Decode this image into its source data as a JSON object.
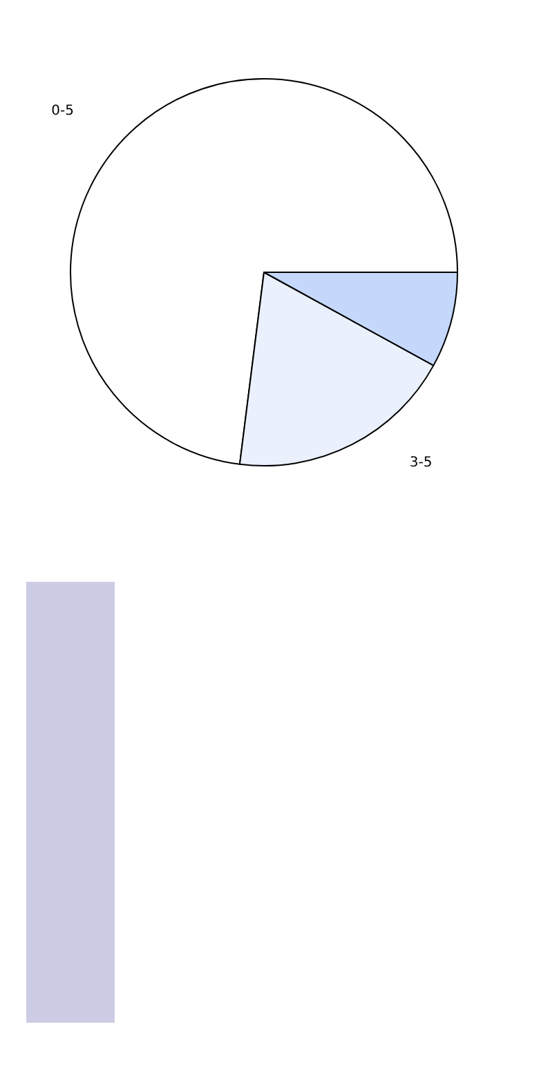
{
  "chart_data": {
    "type": "pie",
    "categories": [
      "0-5",
      "3-5",
      null
    ],
    "values": [
      73,
      19,
      8
    ],
    "colors": [
      "#ffffff",
      "#eaf0fc",
      "#c5d8fc"
    ]
  }
}
